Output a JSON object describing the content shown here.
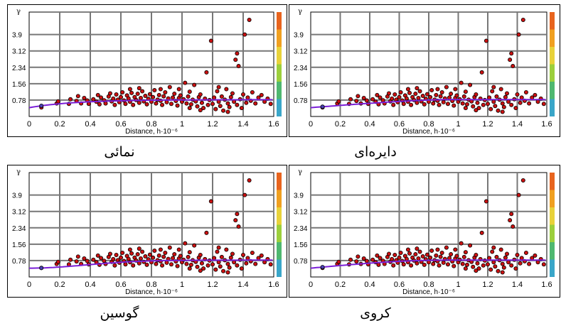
{
  "page_top_fragment": "...",
  "chart_data": [
    {
      "type": "scatter",
      "caption": "دایره‌ای",
      "ylabel": "γ",
      "xlabel": "Distance, h·10⁻⁶",
      "xlim": [
        0,
        1.6
      ],
      "ylim": [
        0,
        4.7
      ],
      "xticks": [
        "0",
        "0.2",
        "0.4",
        "0.6",
        "0.8",
        "1",
        "1.2",
        "1.4",
        "1.6"
      ],
      "yticks": [
        "0.78",
        "1.56",
        "2.34",
        "3.12",
        "3.9"
      ],
      "model_line": "circular",
      "line_color": "#7a1fd6",
      "point_color": "#cc1111",
      "colorbar": [
        "#e8641e",
        "#f0a020",
        "#e8d23a",
        "#9ccf3c",
        "#4fb870",
        "#3aa6c9"
      ]
    },
    {
      "type": "scatter",
      "caption": "نمائی",
      "ylabel": "γ",
      "xlabel": "Distance, h·10⁻⁶",
      "xlim": [
        0,
        1.6
      ],
      "ylim": [
        0,
        4.7
      ],
      "xticks": [
        "0",
        "0.2",
        "0.4",
        "0.6",
        "0.8",
        "1",
        "1.2",
        "1.4",
        "1.6"
      ],
      "yticks": [
        "0.78",
        "1.56",
        "2.34",
        "3.12",
        "3.9"
      ],
      "model_line": "exponential",
      "line_color": "#7a1fd6",
      "point_color": "#cc1111",
      "colorbar": [
        "#e8641e",
        "#f0a020",
        "#e8d23a",
        "#9ccf3c",
        "#4fb870",
        "#3aa6c9"
      ]
    },
    {
      "type": "scatter",
      "caption": "کروی",
      "ylabel": "γ",
      "xlabel": "Distance, h·10⁻⁶",
      "xlim": [
        0,
        1.6
      ],
      "ylim": [
        0,
        4.7
      ],
      "xticks": [
        "0",
        "0.2",
        "0.4",
        "0.6",
        "0.8",
        "1",
        "1.2",
        "1.4",
        "1.6"
      ],
      "yticks": [
        "0.78",
        "1.56",
        "2.34",
        "3.12",
        "3.9"
      ],
      "model_line": "spherical",
      "line_color": "#7a1fd6",
      "point_color": "#cc1111",
      "colorbar": [
        "#e8641e",
        "#f0a020",
        "#e8d23a",
        "#9ccf3c",
        "#4fb870",
        "#3aa6c9"
      ]
    },
    {
      "type": "scatter",
      "caption": "گوسین",
      "ylabel": "γ",
      "xlabel": "Distance, h·10⁻⁶",
      "xlim": [
        0,
        1.6
      ],
      "ylim": [
        0,
        4.7
      ],
      "xticks": [
        "0",
        "0.2",
        "0.4",
        "0.6",
        "0.8",
        "1",
        "1.2",
        "1.4",
        "1.6"
      ],
      "yticks": [
        "0.78",
        "1.56",
        "2.34",
        "3.12",
        "3.9"
      ],
      "model_line": "gaussian",
      "line_color": "#7a1fd6",
      "point_color": "#cc1111",
      "colorbar": [
        "#e8641e",
        "#f0a020",
        "#e8d23a",
        "#9ccf3c",
        "#4fb870",
        "#3aa6c9"
      ]
    }
  ],
  "points": [
    [
      0.08,
      0.43
    ],
    [
      0.18,
      0.62
    ],
    [
      0.19,
      0.72
    ],
    [
      0.26,
      0.6
    ],
    [
      0.27,
      0.82
    ],
    [
      0.31,
      0.74
    ],
    [
      0.32,
      0.97
    ],
    [
      0.34,
      0.62
    ],
    [
      0.36,
      0.88
    ],
    [
      0.38,
      0.76
    ],
    [
      0.39,
      0.6
    ],
    [
      0.42,
      0.82
    ],
    [
      0.44,
      0.7
    ],
    [
      0.45,
      1.02
    ],
    [
      0.46,
      0.58
    ],
    [
      0.47,
      0.9
    ],
    [
      0.49,
      0.77
    ],
    [
      0.5,
      0.62
    ],
    [
      0.52,
      0.95
    ],
    [
      0.53,
      1.1
    ],
    [
      0.54,
      0.72
    ],
    [
      0.55,
      0.85
    ],
    [
      0.56,
      0.55
    ],
    [
      0.57,
      1.05
    ],
    [
      0.58,
      0.8
    ],
    [
      0.59,
      0.68
    ],
    [
      0.6,
      0.92
    ],
    [
      0.61,
      1.15
    ],
    [
      0.62,
      0.76
    ],
    [
      0.63,
      0.6
    ],
    [
      0.64,
      1.0
    ],
    [
      0.65,
      0.86
    ],
    [
      0.66,
      0.7
    ],
    [
      0.67,
      1.12
    ],
    [
      0.68,
      0.55
    ],
    [
      0.69,
      0.92
    ],
    [
      0.7,
      0.78
    ],
    [
      0.71,
      1.08
    ],
    [
      0.72,
      0.65
    ],
    [
      0.73,
      0.88
    ],
    [
      0.74,
      1.2
    ],
    [
      0.75,
      0.72
    ],
    [
      0.76,
      0.98
    ],
    [
      0.77,
      0.58
    ],
    [
      0.78,
      0.84
    ],
    [
      0.79,
      1.06
    ],
    [
      0.8,
      0.7
    ],
    [
      0.81,
      0.92
    ],
    [
      0.82,
      1.25
    ],
    [
      0.83,
      0.62
    ],
    [
      0.84,
      0.8
    ],
    [
      0.85,
      1.02
    ],
    [
      0.86,
      0.75
    ],
    [
      0.87,
      0.55
    ],
    [
      0.88,
      0.96
    ],
    [
      0.89,
      1.15
    ],
    [
      0.9,
      0.68
    ],
    [
      0.91,
      0.86
    ],
    [
      0.92,
      1.4
    ],
    [
      0.93,
      0.6
    ],
    [
      0.94,
      0.9
    ],
    [
      0.95,
      1.08
    ],
    [
      0.96,
      0.74
    ],
    [
      0.97,
      0.52
    ],
    [
      0.98,
      0.88
    ],
    [
      0.99,
      1.0
    ],
    [
      1.0,
      0.7
    ],
    [
      1.01,
      0.82
    ],
    [
      1.02,
      1.6
    ],
    [
      1.03,
      0.62
    ],
    [
      1.04,
      0.95
    ],
    [
      1.05,
      1.18
    ],
    [
      1.06,
      0.58
    ],
    [
      1.07,
      0.8
    ],
    [
      1.08,
      1.5
    ],
    [
      1.09,
      0.72
    ],
    [
      1.1,
      0.48
    ],
    [
      1.11,
      0.92
    ],
    [
      1.12,
      1.05
    ],
    [
      1.13,
      0.65
    ],
    [
      1.14,
      0.4
    ],
    [
      1.15,
      0.85
    ],
    [
      1.16,
      2.1
    ],
    [
      1.17,
      0.55
    ],
    [
      1.18,
      0.78
    ],
    [
      1.19,
      3.6
    ],
    [
      1.2,
      0.6
    ],
    [
      1.21,
      0.9
    ],
    [
      1.22,
      0.35
    ],
    [
      1.23,
      1.2
    ],
    [
      1.24,
      0.7
    ],
    [
      1.25,
      0.5
    ],
    [
      1.26,
      0.95
    ],
    [
      1.27,
      0.28
    ],
    [
      1.28,
      0.8
    ],
    [
      1.29,
      1.3
    ],
    [
      1.3,
      0.62
    ],
    [
      1.31,
      0.45
    ],
    [
      1.32,
      0.92
    ],
    [
      1.33,
      1.1
    ],
    [
      1.34,
      0.7
    ],
    [
      1.35,
      2.7
    ],
    [
      1.36,
      0.55
    ],
    [
      1.37,
      2.4
    ],
    [
      1.38,
      0.82
    ],
    [
      1.39,
      0.4
    ],
    [
      1.4,
      1.05
    ],
    [
      1.41,
      3.9
    ],
    [
      1.42,
      0.65
    ],
    [
      1.43,
      0.9
    ],
    [
      1.44,
      4.6
    ],
    [
      1.45,
      0.75
    ],
    [
      1.46,
      1.15
    ],
    [
      1.48,
      0.62
    ],
    [
      1.5,
      0.9
    ],
    [
      1.52,
      1.02
    ],
    [
      1.54,
      0.7
    ],
    [
      1.56,
      0.85
    ],
    [
      1.58,
      0.6
    ],
    [
      1.36,
      3.0
    ],
    [
      1.12,
      0.3
    ],
    [
      1.05,
      0.4
    ],
    [
      0.98,
      1.3
    ],
    [
      0.86,
      1.3
    ],
    [
      0.72,
      1.35
    ],
    [
      0.66,
      1.3
    ],
    [
      1.24,
      1.4
    ],
    [
      1.3,
      0.22
    ]
  ]
}
